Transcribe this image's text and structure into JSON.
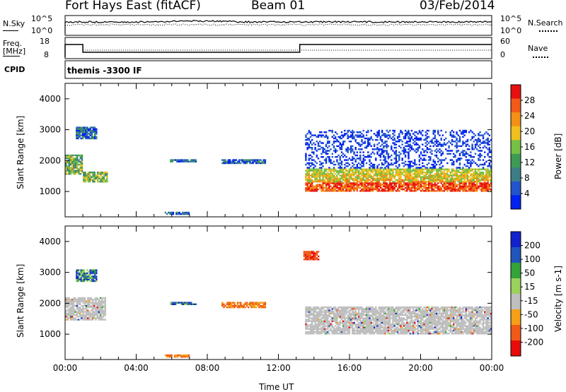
{
  "header": {
    "station": "Fort Hays East (fitACF)",
    "beam": "Beam 01",
    "date": "03/Feb/2014"
  },
  "noise_panel": {
    "left_label": "N.Sky",
    "right_label": "N.Search",
    "ticks_left": [
      "10^5",
      "10^0"
    ],
    "ticks_right": [
      "10^5",
      "10^0"
    ]
  },
  "freq_panel": {
    "left_label_1": "Freq.",
    "left_label_2": "[MHz]",
    "right_label": "Nave",
    "ticks_left": [
      "18",
      "8"
    ],
    "ticks_right": [
      "60",
      "0"
    ]
  },
  "cpid_panel": {
    "label": "CPID",
    "program": "themis -3300 IF"
  },
  "colors": {
    "power": [
      "#0022ee",
      "#2255cc",
      "#3d7e86",
      "#3f9a55",
      "#76c043",
      "#f0c020",
      "#f39017",
      "#f15a1a",
      "#e81010"
    ],
    "velocity": [
      "#e80b0b",
      "#f05a18",
      "#f4a018",
      "#bfbfbf",
      "#9ad25c",
      "#33a33a",
      "#2255bb",
      "#1122cc"
    ]
  },
  "chart_data": [
    {
      "type": "heatmap",
      "title": "",
      "xlabel": "",
      "ylabel": "Slant Range [km]",
      "colorbar_label": "Power [dB]",
      "colorbar_ticks": [
        "28",
        "24",
        "20",
        "16",
        "12",
        "8",
        "4"
      ],
      "ylim": [
        180,
        4500
      ],
      "yticks": [
        "4000",
        "3000",
        "2000",
        "1000"
      ],
      "x_hours": [
        0,
        24
      ],
      "echo_regions": [
        {
          "t0": 0.0,
          "t1": 1.0,
          "r0": 1550,
          "r1": 2200,
          "level": "mid-high"
        },
        {
          "t0": 0.6,
          "t1": 1.8,
          "r0": 2700,
          "r1": 3100,
          "level": "low-mid"
        },
        {
          "t0": 1.0,
          "t1": 2.4,
          "r0": 1300,
          "r1": 1650,
          "level": "mid-high"
        },
        {
          "t0": 5.9,
          "t1": 7.4,
          "r0": 1950,
          "r1": 2050,
          "level": "low-mid"
        },
        {
          "t0": 8.8,
          "t1": 11.3,
          "r0": 1900,
          "r1": 2050,
          "level": "low-mid"
        },
        {
          "t0": 5.6,
          "t1": 7.0,
          "r0": 250,
          "r1": 350,
          "level": "low-mid"
        },
        {
          "t0": 13.5,
          "t1": 24.0,
          "r0": 1000,
          "r1": 1750,
          "level": "high"
        },
        {
          "t0": 13.5,
          "t1": 24.0,
          "r0": 1750,
          "r1": 3000,
          "level": "low"
        }
      ]
    },
    {
      "type": "heatmap",
      "title": "",
      "xlabel": "Time UT",
      "ylabel": "Slant Range [km]",
      "colorbar_label": "Velocity [m s-1]",
      "colorbar_ticks": [
        "200",
        "100",
        "50",
        "15",
        "-15",
        "-50",
        "-100",
        "-200"
      ],
      "ylim": [
        180,
        4500
      ],
      "yticks": [
        "4000",
        "3000",
        "2000",
        "1000"
      ],
      "xticks": [
        "00:00",
        "04:00",
        "08:00",
        "12:00",
        "16:00",
        "20:00",
        "00:00"
      ],
      "x_hours": [
        0,
        4,
        8,
        12,
        16,
        20,
        24
      ],
      "echo_regions": [
        {
          "t0": 0.0,
          "t1": 2.3,
          "r0": 1450,
          "r1": 2200,
          "level": "ground"
        },
        {
          "t0": 0.6,
          "t1": 1.8,
          "r0": 2700,
          "r1": 3100,
          "level": "toward"
        },
        {
          "t0": 5.9,
          "t1": 7.4,
          "r0": 1950,
          "r1": 2050,
          "level": "toward"
        },
        {
          "t0": 8.8,
          "t1": 11.3,
          "r0": 1850,
          "r1": 2050,
          "level": "away"
        },
        {
          "t0": 5.6,
          "t1": 7.0,
          "r0": 250,
          "r1": 350,
          "level": "away"
        },
        {
          "t0": 13.4,
          "t1": 14.3,
          "r0": 3400,
          "r1": 3700,
          "level": "fast-away"
        },
        {
          "t0": 13.5,
          "t1": 24.0,
          "r0": 1000,
          "r1": 1900,
          "level": "ground"
        }
      ]
    }
  ]
}
